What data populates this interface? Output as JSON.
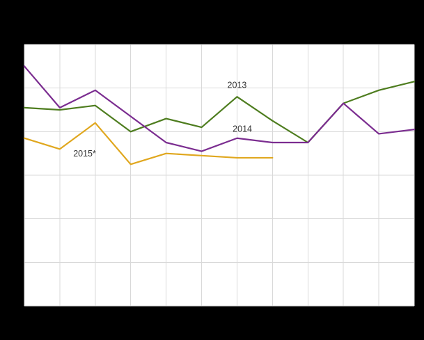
{
  "page": {
    "background_color": "#000000",
    "plot_background": "#ffffff",
    "gridline_color": "#d9d9d9"
  },
  "chart_data": {
    "type": "line",
    "x": [
      1,
      2,
      3,
      4,
      5,
      6,
      7,
      8,
      9,
      10,
      11,
      12
    ],
    "xlim": [
      1,
      12
    ],
    "ylim": [
      0,
      60
    ],
    "y_grid_step": 10,
    "grid": true,
    "legend_position": "inline-annotations",
    "series": [
      {
        "name": "2013",
        "color": "#4e7d1f",
        "values": [
          45.5,
          45,
          46,
          40,
          43,
          41,
          48,
          42.5,
          37.5,
          46.5,
          49.5,
          51.5
        ]
      },
      {
        "name": "2014",
        "color": "#7b2d90",
        "values": [
          55,
          45.5,
          49.5,
          43.5,
          37.5,
          35.5,
          38.5,
          37.5,
          37.5,
          46.5,
          39.5,
          40.5
        ]
      },
      {
        "name": "2015*",
        "color": "#e0a71e",
        "values": [
          38.5,
          36,
          42,
          32.5,
          35,
          34.5,
          34,
          34
        ]
      }
    ],
    "annotations": [
      {
        "text": "2013",
        "x": 7,
        "y": 50
      },
      {
        "text": "2014",
        "x": 7.15,
        "y": 40
      },
      {
        "text": "2015*",
        "x": 2.7,
        "y": 34.3
      }
    ]
  }
}
